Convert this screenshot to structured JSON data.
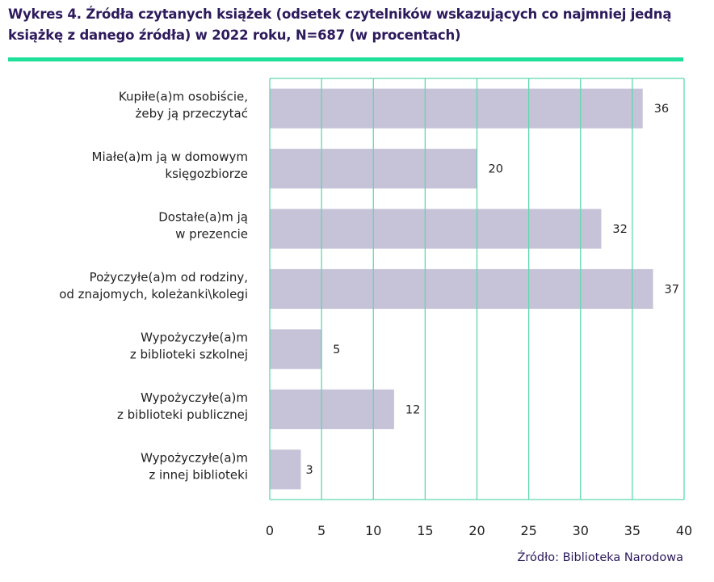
{
  "title_line1": "Wykres 4. Źródła czytanych książek (odsetek czytelników wskazujących co najmniej jedną",
  "title_line2": "książkę z danego źródła) w 2022 roku, N=687 (w procentach)",
  "source": "Źródło: Biblioteka Narodowa",
  "colors": {
    "bar": "#c6c2d8",
    "grid": "#5fd8b0",
    "rule": "#1fe09a",
    "title": "#2d1a5c"
  },
  "chart_data": {
    "type": "bar",
    "orientation": "horizontal",
    "title": "Wykres 4. Źródła czytanych książek (odsetek czytelników wskazujących co najmniej jedną książkę z danego źródła) w 2022 roku, N=687 (w procentach)",
    "categories": [
      [
        "Kupiłe(a)m osobiście,",
        "żeby ją przeczytać"
      ],
      [
        "Miałe(a)m ją w domowym",
        "księgozbiorze"
      ],
      [
        "Dostałe(a)m ją",
        "w prezencie"
      ],
      [
        "Pożyczyłe(a)m od rodziny,",
        "od znajomych, koleżanki\\kolegi"
      ],
      [
        "Wypożyczyłe(a)m",
        "z biblioteki szkolnej"
      ],
      [
        "Wypożyczyłe(a)m",
        "z biblioteki publicznej"
      ],
      [
        "Wypożyczyłe(a)m",
        "z innej biblioteki"
      ]
    ],
    "values": [
      36,
      20,
      32,
      37,
      5,
      12,
      3
    ],
    "xlim": [
      0,
      40
    ],
    "xticks": [
      "0",
      "5",
      "10",
      "15",
      "20",
      "25",
      "30",
      "35",
      "40"
    ],
    "grid": true,
    "legend": "none",
    "xlabel": "",
    "ylabel": ""
  }
}
